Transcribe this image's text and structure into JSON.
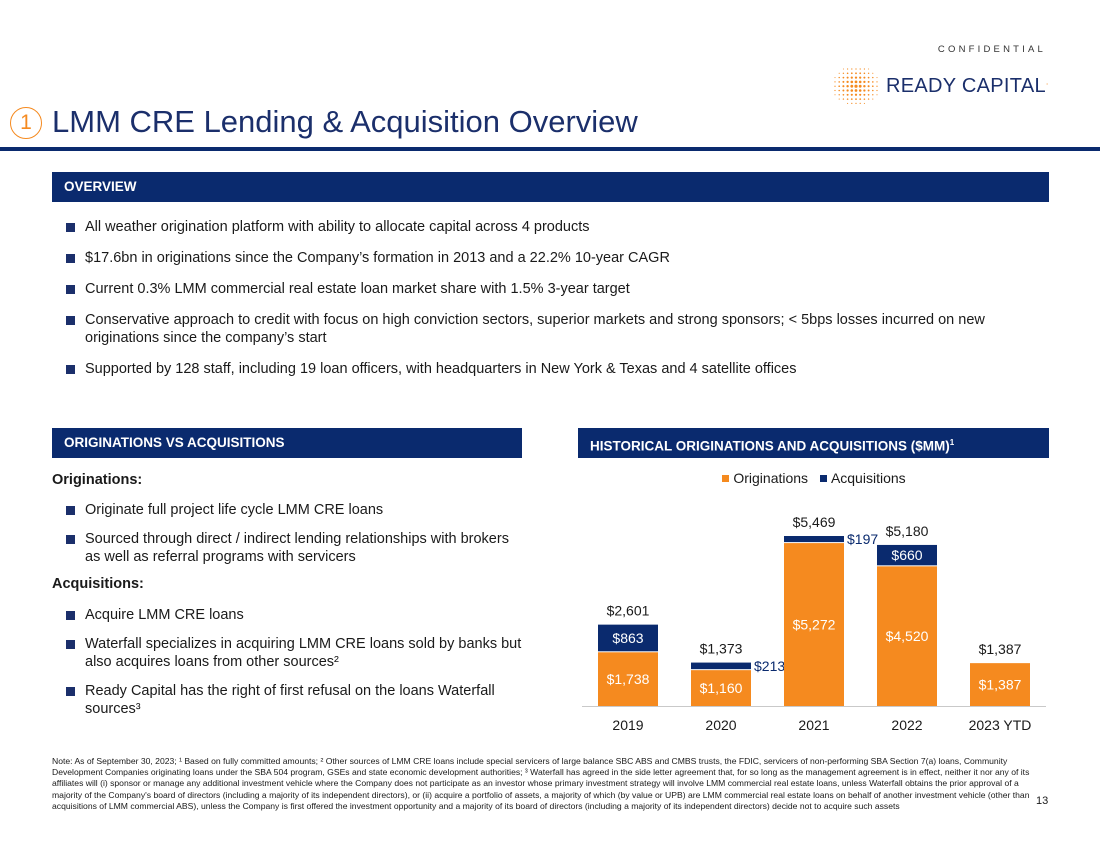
{
  "header": {
    "confidential": "CONFIDENTIAL",
    "logo_text": "READY CAPITAL",
    "logo_trademark": ".",
    "section_number": "1",
    "title": "LMM CRE Lending & Acquisition Overview"
  },
  "overview": {
    "heading": "OVERVIEW",
    "bullets": [
      "All weather origination platform with ability to allocate capital across 4 products",
      "$17.6bn in originations since the Company’s formation in 2013 and a 22.2% 10-year CAGR",
      "Current 0.3% LMM commercial real estate loan market share with 1.5% 3-year target",
      "Conservative approach to credit with focus on high conviction sectors, superior markets and strong sponsors; < 5bps losses incurred on new originations since the company’s start",
      "Supported by 128 staff, including 19 loan officers, with headquarters in New York & Texas and 4 satellite offices"
    ]
  },
  "orig_vs_acq": {
    "heading": "ORIGINATIONS VS ACQUISITIONS",
    "originations_label": "Originations:",
    "originations_bullets": [
      "Originate full project life cycle LMM CRE loans",
      "Sourced through direct / indirect lending relationships with brokers as well as referral programs with servicers"
    ],
    "acquisitions_label": "Acquisitions:",
    "acquisitions_bullets": [
      "Acquire LMM CRE loans",
      "Waterfall specializes in acquiring LMM CRE loans sold by banks but also acquires loans from other sources²",
      "Ready Capital has the right of first refusal on the loans Waterfall sources³"
    ]
  },
  "historical": {
    "heading": "HISTORICAL ORIGINATIONS AND ACQUISITIONS ($MM)",
    "heading_sup": "1"
  },
  "chart_data": {
    "type": "bar",
    "stacked": true,
    "title": "HISTORICAL ORIGINATIONS AND ACQUISITIONS ($MM)",
    "categories": [
      "2019",
      "2020",
      "2021",
      "2022",
      "2023 YTD"
    ],
    "series": [
      {
        "name": "Originations",
        "color": "#f58a1f",
        "values": [
          1738,
          1160,
          5272,
          4520,
          1387
        ],
        "labels": [
          "$1,738",
          "$1,160",
          "$5,272",
          "$4,520",
          "$1,387"
        ]
      },
      {
        "name": "Acquisitions",
        "color": "#0a2a6e",
        "values": [
          863,
          213,
          197,
          660,
          0
        ],
        "labels": [
          "$863",
          "$213",
          "$197",
          "$660",
          ""
        ]
      }
    ],
    "totals": [
      "$2,601",
      "$1,373",
      "$5,469",
      "$5,180",
      "$1,387"
    ],
    "legend_position": "top-center",
    "ylim": [
      0,
      5600
    ],
    "grid": false,
    "xlabel": "",
    "ylabel": ""
  },
  "footnote": "Note: As of September 30, 2023; ¹ Based on fully committed amounts; ² Other sources of LMM CRE loans include special servicers of large balance SBC ABS and CMBS trusts, the FDIC, servicers of non-performing SBA Section 7(a) loans, Community Development Companies originating loans under the SBA 504 program, GSEs and state economic development authorities; ³ Waterfall has agreed in the side letter agreement that, for so long as the management agreement is in effect, neither it nor any of its affiliates will (i) sponsor or manage any additional investment vehicle where the Company does not participate as an investor whose primary investment strategy will involve LMM commercial real estate loans, unless Waterfall obtains the prior approval of a majority of the Company's board of directors (including a majority of its independent directors), or (ii) acquire a portfolio of assets, a majority of which (by value or UPB) are LMM commercial real estate loans on behalf of another investment vehicle (other than acquisitions of LMM commercial ABS), unless the Company is first offered the investment opportunity and a majority of its board of directors (including a majority of its independent directors) decide not to acquire such assets",
  "page_number": "13",
  "colors": {
    "navy": "#0a2a6e",
    "orange": "#f58a1f",
    "brand_text": "#1b2f6b"
  }
}
